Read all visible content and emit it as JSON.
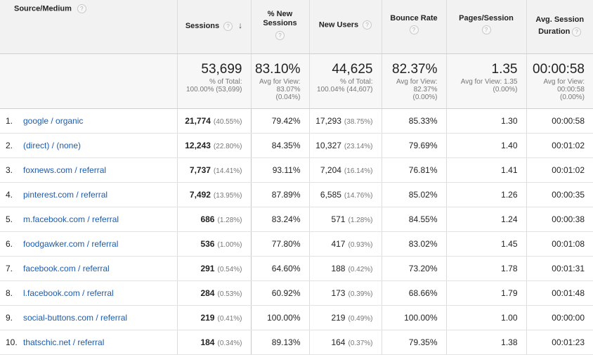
{
  "headers": {
    "source": "Source/Medium",
    "sessions": "Sessions",
    "new_sessions_line1": "% New",
    "new_sessions_line2": "Sessions",
    "new_users": "New Users",
    "bounce_rate": "Bounce Rate",
    "pages_session": "Pages/Session",
    "duration_line1": "Avg. Session",
    "duration_line2": "Duration",
    "help_glyph": "?",
    "sort_glyph": "↓"
  },
  "summary": {
    "sessions": {
      "value": "53,699",
      "l1": "% of Total:",
      "l2": "100.00% (53,699)"
    },
    "new_sessions": {
      "value": "83.10%",
      "l1": "Avg for View:",
      "l2": "83.07%",
      "l3": "(0.04%)"
    },
    "new_users": {
      "value": "44,625",
      "l1": "% of Total:",
      "l2": "100.04% (44,607)"
    },
    "bounce_rate": {
      "value": "82.37%",
      "l1": "Avg for View:",
      "l2": "82.37%",
      "l3": "(0.00%)"
    },
    "pages_session": {
      "value": "1.35",
      "l1": "Avg for View: 1.35",
      "l2": "(0.00%)"
    },
    "duration": {
      "value": "00:00:58",
      "l1": "Avg for View:",
      "l2": "00:00:58",
      "l3": "(0.00%)"
    }
  },
  "rows": [
    {
      "idx": "1.",
      "source": "google / organic",
      "sessions": "21,774",
      "sessions_pct": "(40.55%)",
      "new_sessions": "79.42%",
      "new_users": "17,293",
      "new_users_pct": "(38.75%)",
      "bounce": "85.33%",
      "pages": "1.30",
      "duration": "00:00:58"
    },
    {
      "idx": "2.",
      "source": "(direct) / (none)",
      "sessions": "12,243",
      "sessions_pct": "(22.80%)",
      "new_sessions": "84.35%",
      "new_users": "10,327",
      "new_users_pct": "(23.14%)",
      "bounce": "79.69%",
      "pages": "1.40",
      "duration": "00:01:02"
    },
    {
      "idx": "3.",
      "source": "foxnews.com / referral",
      "sessions": "7,737",
      "sessions_pct": "(14.41%)",
      "new_sessions": "93.11%",
      "new_users": "7,204",
      "new_users_pct": "(16.14%)",
      "bounce": "76.81%",
      "pages": "1.41",
      "duration": "00:01:02"
    },
    {
      "idx": "4.",
      "source": "pinterest.com / referral",
      "sessions": "7,492",
      "sessions_pct": "(13.95%)",
      "new_sessions": "87.89%",
      "new_users": "6,585",
      "new_users_pct": "(14.76%)",
      "bounce": "85.02%",
      "pages": "1.26",
      "duration": "00:00:35"
    },
    {
      "idx": "5.",
      "source": "m.facebook.com / referral",
      "sessions": "686",
      "sessions_pct": "(1.28%)",
      "new_sessions": "83.24%",
      "new_users": "571",
      "new_users_pct": "(1.28%)",
      "bounce": "84.55%",
      "pages": "1.24",
      "duration": "00:00:38"
    },
    {
      "idx": "6.",
      "source": "foodgawker.com / referral",
      "sessions": "536",
      "sessions_pct": "(1.00%)",
      "new_sessions": "77.80%",
      "new_users": "417",
      "new_users_pct": "(0.93%)",
      "bounce": "83.02%",
      "pages": "1.45",
      "duration": "00:01:08"
    },
    {
      "idx": "7.",
      "source": "facebook.com / referral",
      "sessions": "291",
      "sessions_pct": "(0.54%)",
      "new_sessions": "64.60%",
      "new_users": "188",
      "new_users_pct": "(0.42%)",
      "bounce": "73.20%",
      "pages": "1.78",
      "duration": "00:01:31"
    },
    {
      "idx": "8.",
      "source": "l.facebook.com / referral",
      "sessions": "284",
      "sessions_pct": "(0.53%)",
      "new_sessions": "60.92%",
      "new_users": "173",
      "new_users_pct": "(0.39%)",
      "bounce": "68.66%",
      "pages": "1.79",
      "duration": "00:01:48"
    },
    {
      "idx": "9.",
      "source": "social-buttons.com / referral",
      "sessions": "219",
      "sessions_pct": "(0.41%)",
      "new_sessions": "100.00%",
      "new_users": "219",
      "new_users_pct": "(0.49%)",
      "bounce": "100.00%",
      "pages": "1.00",
      "duration": "00:00:00"
    },
    {
      "idx": "10.",
      "source": "thatschic.net / referral",
      "sessions": "184",
      "sessions_pct": "(0.34%)",
      "new_sessions": "89.13%",
      "new_users": "164",
      "new_users_pct": "(0.37%)",
      "bounce": "79.35%",
      "pages": "1.38",
      "duration": "00:01:23"
    }
  ]
}
